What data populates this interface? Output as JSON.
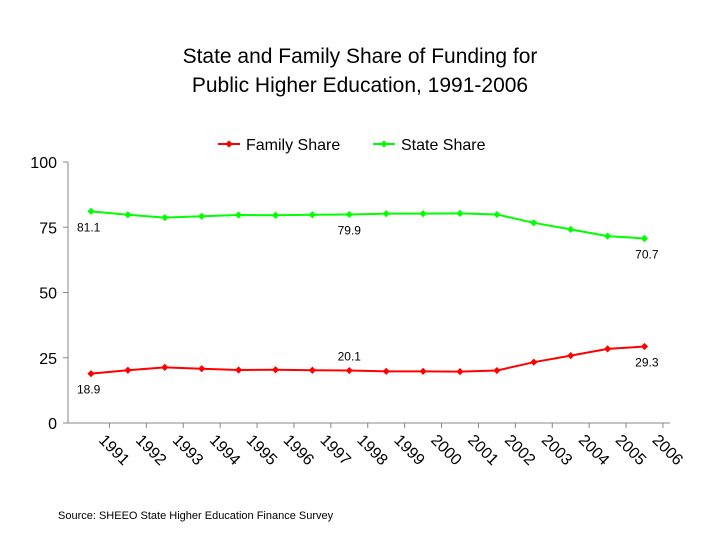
{
  "chart_data": {
    "type": "line",
    "title": [
      "State and Family Share of Funding for",
      "Public Higher Education, 1991-2006"
    ],
    "x": [
      "1991",
      "1992",
      "1993",
      "1994",
      "1995",
      "1996",
      "1997",
      "1998",
      "1999",
      "2000",
      "2001",
      "2002",
      "2003",
      "2004",
      "2005",
      "2006"
    ],
    "ylim": [
      0,
      100
    ],
    "yticks": [
      "0",
      "25",
      "50",
      "75",
      "100"
    ],
    "grid": false,
    "legend_position": "top",
    "series": [
      {
        "name": "Family Share",
        "color": "#ff0000",
        "values": [
          18.9,
          20.2,
          21.3,
          20.8,
          20.3,
          20.4,
          20.2,
          20.1,
          19.8,
          19.8,
          19.7,
          20.1,
          23.3,
          25.8,
          28.4,
          29.3
        ],
        "labels": [
          {
            "index": 0,
            "text": "18.9",
            "place": "below"
          },
          {
            "index": 7,
            "text": "20.1",
            "place": "above"
          },
          {
            "index": 15,
            "text": "29.3",
            "place": "below"
          }
        ]
      },
      {
        "name": "State Share",
        "color": "#00ff00",
        "values": [
          81.1,
          79.8,
          78.7,
          79.2,
          79.7,
          79.6,
          79.8,
          79.9,
          80.2,
          80.2,
          80.3,
          79.9,
          76.7,
          74.2,
          71.6,
          70.7
        ],
        "labels": [
          {
            "index": 0,
            "text": "81.1",
            "place": "below"
          },
          {
            "index": 7,
            "text": "79.9",
            "place": "below"
          },
          {
            "index": 15,
            "text": "70.7",
            "place": "below"
          }
        ]
      }
    ],
    "source": "Source:  SHEEO State Higher Education Finance Survey"
  }
}
